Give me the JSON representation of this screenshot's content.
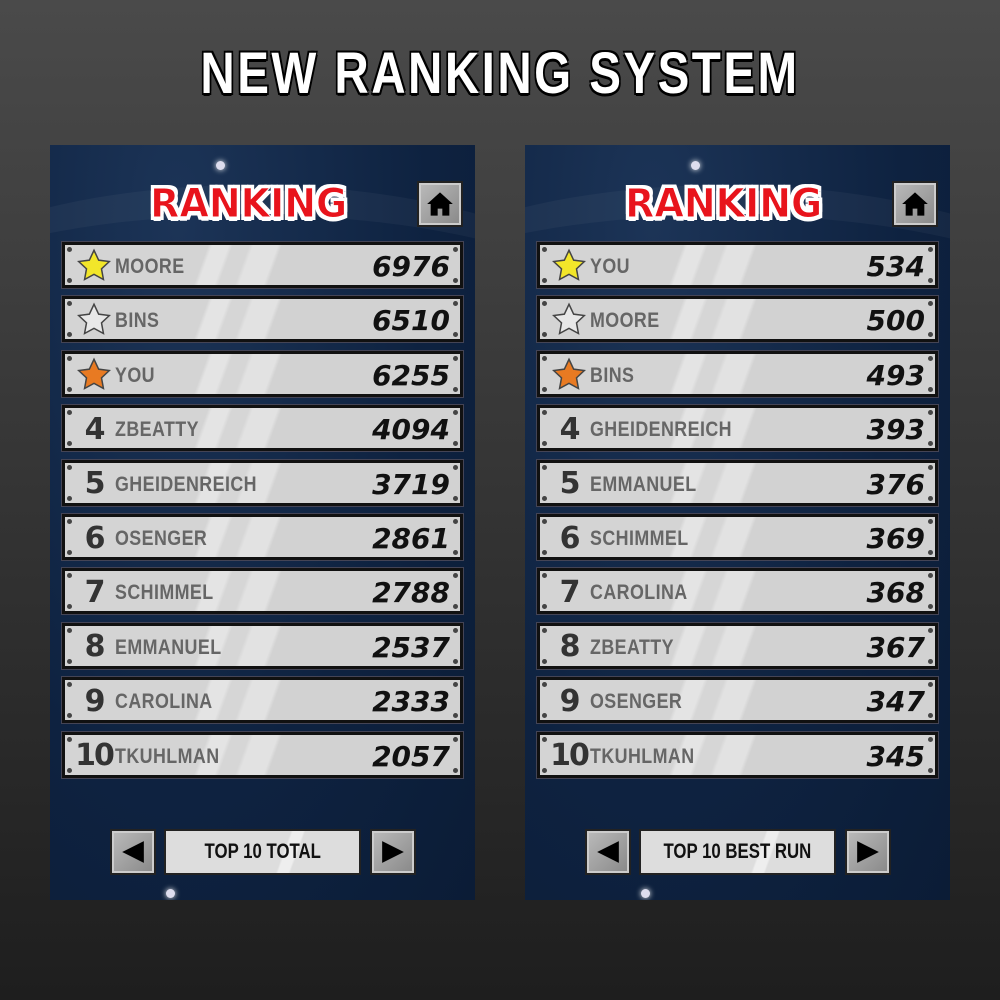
{
  "headline": "NEW RANKING SYSTEM",
  "panels": [
    {
      "title": "RANKING",
      "mode_label": "TOP 10 TOTAL",
      "entries": [
        {
          "rank": "1",
          "medal": "gold-star",
          "name": "MOORE",
          "score": "6976"
        },
        {
          "rank": "2",
          "medal": "silver-star",
          "name": "BINS",
          "score": "6510"
        },
        {
          "rank": "3",
          "medal": "bronze-star",
          "name": "YOU",
          "score": "6255"
        },
        {
          "rank": "4",
          "name": "ZBEATTY",
          "score": "4094"
        },
        {
          "rank": "5",
          "name": "GHEIDENREICH",
          "score": "3719"
        },
        {
          "rank": "6",
          "name": "OSENGER",
          "score": "2861"
        },
        {
          "rank": "7",
          "name": "SCHIMMEL",
          "score": "2788"
        },
        {
          "rank": "8",
          "name": "EMMANUEL",
          "score": "2537"
        },
        {
          "rank": "9",
          "name": "CAROLINA",
          "score": "2333"
        },
        {
          "rank": "10",
          "name": "TKUHLMAN",
          "score": "2057"
        }
      ]
    },
    {
      "title": "RANKING",
      "mode_label": "TOP 10 BEST RUN",
      "entries": [
        {
          "rank": "1",
          "medal": "gold-star",
          "name": "YOU",
          "score": "534"
        },
        {
          "rank": "2",
          "medal": "silver-star",
          "name": "MOORE",
          "score": "500"
        },
        {
          "rank": "3",
          "medal": "bronze-star",
          "name": "BINS",
          "score": "493"
        },
        {
          "rank": "4",
          "name": "GHEIDENREICH",
          "score": "393"
        },
        {
          "rank": "5",
          "name": "EMMANUEL",
          "score": "376"
        },
        {
          "rank": "6",
          "name": "SCHIMMEL",
          "score": "369"
        },
        {
          "rank": "7",
          "name": "CAROLINA",
          "score": "368"
        },
        {
          "rank": "8",
          "name": "ZBEATTY",
          "score": "367"
        },
        {
          "rank": "9",
          "name": "OSENGER",
          "score": "347"
        },
        {
          "rank": "10",
          "name": "TKUHLMAN",
          "score": "345"
        }
      ]
    }
  ],
  "colors": {
    "gold": "#f2e62a",
    "silver": "#e8e8e8",
    "bronze": "#e87a22",
    "title": "#e8141c",
    "panel": "#0e2240"
  }
}
